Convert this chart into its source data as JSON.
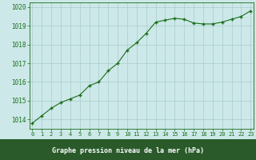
{
  "x": [
    0,
    1,
    2,
    3,
    4,
    5,
    6,
    7,
    8,
    9,
    10,
    11,
    12,
    13,
    14,
    15,
    16,
    17,
    18,
    19,
    20,
    21,
    22,
    23
  ],
  "y": [
    1013.8,
    1014.2,
    1014.6,
    1014.9,
    1015.1,
    1015.3,
    1015.8,
    1016.0,
    1016.6,
    1017.0,
    1017.7,
    1018.1,
    1018.6,
    1019.2,
    1019.3,
    1019.4,
    1019.35,
    1019.15,
    1019.1,
    1019.1,
    1019.2,
    1019.35,
    1019.5,
    1019.8
  ],
  "bg_color": "#cce8e8",
  "plot_bg_color": "#cce8e8",
  "grid_color": "#aacccc",
  "line_color": "#1a6e1a",
  "marker_color": "#1a6e1a",
  "xlabel": "Graphe pression niveau de la mer (hPa)",
  "xlabel_color": "#1a6e1a",
  "tick_color": "#1a6e1a",
  "bottom_bar_color": "#2a5a2a",
  "ylim": [
    1013.5,
    1020.25
  ],
  "yticks": [
    1014,
    1015,
    1016,
    1017,
    1018,
    1019,
    1020
  ],
  "xticks": [
    0,
    1,
    2,
    3,
    4,
    5,
    6,
    7,
    8,
    9,
    10,
    11,
    12,
    13,
    14,
    15,
    16,
    17,
    18,
    19,
    20,
    21,
    22,
    23
  ],
  "figsize": [
    3.2,
    2.0
  ],
  "dpi": 100
}
